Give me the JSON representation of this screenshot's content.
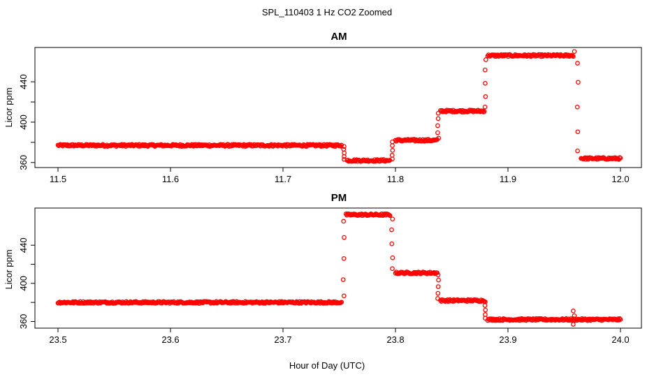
{
  "figure": {
    "title": "SPL_110403  1 Hz CO2 Zoomed",
    "xlabel": "Hour of Day (UTC)"
  },
  "colors": {
    "points": "#ff0000",
    "axis": "#000000"
  },
  "chart_data": [
    {
      "type": "scatter",
      "title": "AM",
      "ylabel": "Licor ppm",
      "xlim": [
        11.5,
        12.0
      ],
      "ylim": [
        355,
        474
      ],
      "xticks": [
        "11.5",
        "11.6",
        "11.7",
        "11.8",
        "11.9",
        "12.0"
      ],
      "yticks": [
        "360",
        "400",
        "440"
      ],
      "series": [
        {
          "name": "CO2",
          "segments": [
            {
              "x": [
                11.5,
                11.752
              ],
              "y": 377
            },
            {
              "x": [
                11.757,
                11.795
              ],
              "y": 362
            },
            {
              "x": [
                11.8,
                11.837
              ],
              "y": 382
            },
            {
              "x": [
                11.84,
                11.879
              ],
              "y": 411
            },
            {
              "x": [
                11.882,
                11.958
              ],
              "y": 466
            },
            {
              "x": [
                11.965,
                12.0
              ],
              "y": 364
            }
          ],
          "transitions": [
            {
              "x": 11.754,
              "y": [
                377,
                362
              ]
            },
            {
              "x": 11.797,
              "y": [
                362,
                382
              ]
            },
            {
              "x": 11.838,
              "y": [
                382,
                411
              ]
            },
            {
              "x": 11.88,
              "y": [
                411,
                466
              ]
            },
            {
              "x": 11.962,
              "y": [
                466,
                364
              ]
            }
          ],
          "spikes": [
            {
              "x": 11.959,
              "y": 470
            }
          ]
        }
      ]
    },
    {
      "type": "scatter",
      "title": "PM",
      "ylabel": "Licor ppm",
      "xlim": [
        23.5,
        24.0
      ],
      "ylim": [
        353,
        479
      ],
      "xticks": [
        "23.5",
        "23.6",
        "23.7",
        "23.8",
        "23.9",
        "24.0"
      ],
      "yticks": [
        "360",
        "400",
        "440"
      ],
      "series": [
        {
          "name": "CO2",
          "segments": [
            {
              "x": [
                23.5,
                23.752
              ],
              "y": 380
            },
            {
              "x": [
                23.756,
                23.795
              ],
              "y": 472
            },
            {
              "x": [
                23.8,
                23.837
              ],
              "y": 411
            },
            {
              "x": [
                23.84,
                23.879
              ],
              "y": 382
            },
            {
              "x": [
                23.882,
                24.0
              ],
              "y": 362
            }
          ],
          "transitions": [
            {
              "x": 23.754,
              "y": [
                380,
                472
              ]
            },
            {
              "x": 23.797,
              "y": [
                472,
                411
              ]
            },
            {
              "x": 23.838,
              "y": [
                411,
                382
              ]
            },
            {
              "x": 23.88,
              "y": [
                382,
                362
              ]
            }
          ],
          "spikes": [
            {
              "x": 23.958,
              "y": 371
            },
            {
              "x": 23.958,
              "y": 357
            },
            {
              "x": 23.959,
              "y": 366
            }
          ]
        }
      ]
    }
  ]
}
